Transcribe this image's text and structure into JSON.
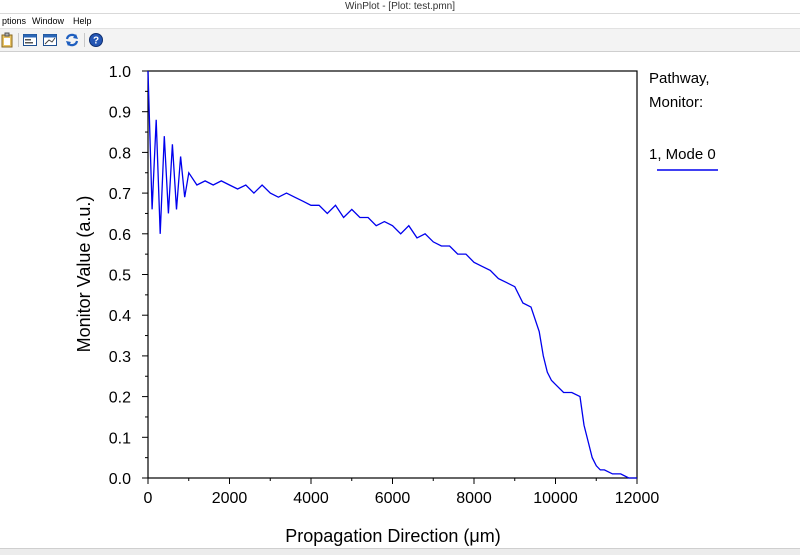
{
  "window": {
    "title": "WinPlot - [Plot: test.pmn]"
  },
  "menu": {
    "items": [
      "ptions",
      "Window",
      "Help"
    ]
  },
  "toolbar": {
    "icons": [
      "clipboard-icon",
      "window-icon",
      "zoom-window-icon",
      "refresh-icon",
      "help-icon"
    ]
  },
  "chart_data": {
    "type": "line",
    "title": "",
    "xlabel": "Propagation Direction (μm)",
    "ylabel": "Monitor Value (a.u.)",
    "xlim": [
      0,
      12000
    ],
    "ylim": [
      0.0,
      1.0
    ],
    "xticks": [
      "0",
      "2000",
      "4000",
      "6000",
      "8000",
      "10000",
      "12000"
    ],
    "yticks": [
      "0.0",
      "0.1",
      "0.2",
      "0.3",
      "0.4",
      "0.5",
      "0.6",
      "0.7",
      "0.8",
      "0.9",
      "1.0"
    ],
    "grid": false,
    "legend": {
      "heading_line1": "Pathway,",
      "heading_line2": "Monitor:",
      "position": "right"
    },
    "color": "#0000ee",
    "series": [
      {
        "name": "1, Mode 0",
        "x": [
          0,
          100,
          200,
          300,
          400,
          500,
          600,
          700,
          800,
          900,
          1000,
          1200,
          1400,
          1600,
          1800,
          2000,
          2200,
          2400,
          2600,
          2800,
          3000,
          3200,
          3400,
          3600,
          3800,
          4000,
          4200,
          4400,
          4600,
          4800,
          5000,
          5200,
          5400,
          5600,
          5800,
          6000,
          6200,
          6400,
          6600,
          6800,
          7000,
          7200,
          7400,
          7600,
          7800,
          8000,
          8200,
          8400,
          8600,
          8800,
          9000,
          9200,
          9400,
          9600,
          9700,
          9800,
          9900,
          10000,
          10200,
          10400,
          10600,
          10700,
          10800,
          10900,
          11000,
          11100,
          11200,
          11400,
          11600,
          11800,
          12000
        ],
        "y": [
          1.0,
          0.66,
          0.88,
          0.6,
          0.84,
          0.65,
          0.82,
          0.66,
          0.79,
          0.69,
          0.75,
          0.72,
          0.73,
          0.72,
          0.73,
          0.72,
          0.71,
          0.72,
          0.7,
          0.72,
          0.7,
          0.69,
          0.7,
          0.69,
          0.68,
          0.67,
          0.67,
          0.65,
          0.67,
          0.64,
          0.66,
          0.64,
          0.64,
          0.62,
          0.63,
          0.62,
          0.6,
          0.62,
          0.59,
          0.6,
          0.58,
          0.57,
          0.57,
          0.55,
          0.55,
          0.53,
          0.52,
          0.51,
          0.49,
          0.48,
          0.47,
          0.43,
          0.42,
          0.36,
          0.3,
          0.26,
          0.24,
          0.23,
          0.21,
          0.21,
          0.2,
          0.13,
          0.09,
          0.05,
          0.03,
          0.02,
          0.02,
          0.01,
          0.01,
          0.0,
          0.0
        ]
      }
    ]
  }
}
